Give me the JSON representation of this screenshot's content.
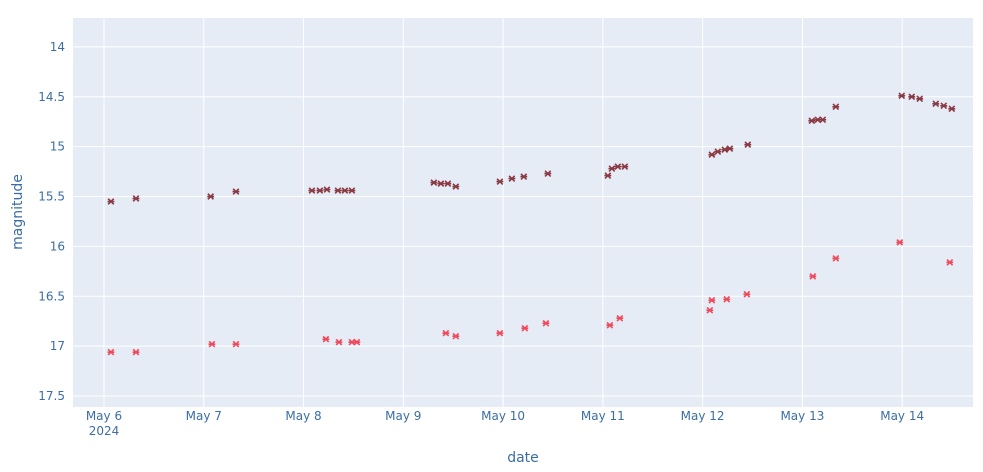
{
  "chart_data": {
    "type": "scatter",
    "x_label": "date",
    "y_label": "magnitude",
    "xlim": [
      "2024-05-05T16:33",
      "2024-05-14T17:02"
    ],
    "ylim": [
      17.61,
      13.71
    ],
    "xticks": [
      {
        "value": "2024-05-06T00:00",
        "label": "May 6"
      },
      {
        "value": "2024-05-07T00:00",
        "label": "May 7"
      },
      {
        "value": "2024-05-08T00:00",
        "label": "May 8"
      },
      {
        "value": "2024-05-09T00:00",
        "label": "May 9"
      },
      {
        "value": "2024-05-10T00:00",
        "label": "May 10"
      },
      {
        "value": "2024-05-11T00:00",
        "label": "May 11"
      },
      {
        "value": "2024-05-12T00:00",
        "label": "May 12"
      },
      {
        "value": "2024-05-13T00:00",
        "label": "May 13"
      },
      {
        "value": "2024-05-14T00:00",
        "label": "May 14"
      }
    ],
    "x_year_label": "2024",
    "yticks": [
      14,
      14.5,
      15,
      15.5,
      16,
      16.5,
      17,
      17.5
    ],
    "grid": true,
    "series": [
      {
        "color": "#8b3a44",
        "x": [
          "2024-05-06T01:41",
          "2024-05-06T07:42",
          "2024-05-07T01:40",
          "2024-05-07T07:45",
          "2024-05-08T02:01",
          "2024-05-08T03:56",
          "2024-05-08T05:38",
          "2024-05-08T08:17",
          "2024-05-08T09:57",
          "2024-05-08T11:38",
          "2024-05-09T07:21",
          "2024-05-09T09:02",
          "2024-05-09T10:43",
          "2024-05-09T12:38",
          "2024-05-09T23:14",
          "2024-05-10T02:07",
          "2024-05-10T04:59",
          "2024-05-10T10:46",
          "2024-05-11T01:12",
          "2024-05-11T02:10",
          "2024-05-11T03:36",
          "2024-05-11T05:17",
          "2024-05-12T02:13",
          "2024-05-12T03:39",
          "2024-05-12T05:20",
          "2024-05-12T06:33",
          "2024-05-12T10:52",
          "2024-05-13T02:15",
          "2024-05-13T03:42",
          "2024-05-13T04:54",
          "2024-05-13T08:02",
          "2024-05-13T23:54",
          "2024-05-14T02:18",
          "2024-05-14T04:13",
          "2024-05-14T08:05",
          "2024-05-14T10:00",
          "2024-05-14T11:56"
        ],
        "values": [
          15.55,
          15.52,
          15.5,
          15.45,
          15.44,
          15.44,
          15.43,
          15.44,
          15.44,
          15.44,
          15.36,
          15.37,
          15.37,
          15.4,
          15.35,
          15.32,
          15.3,
          15.27,
          15.29,
          15.22,
          15.2,
          15.2,
          15.08,
          15.05,
          15.03,
          15.02,
          14.98,
          14.74,
          14.73,
          14.73,
          14.6,
          14.49,
          14.5,
          14.52,
          14.57,
          14.59,
          14.62
        ]
      },
      {
        "color": "#ef4a5b",
        "x": [
          "2024-05-06T01:41",
          "2024-05-06T07:42",
          "2024-05-07T01:58",
          "2024-05-07T07:45",
          "2024-05-08T05:23",
          "2024-05-08T08:31",
          "2024-05-08T11:38",
          "2024-05-08T12:50",
          "2024-05-09T10:14",
          "2024-05-09T12:38",
          "2024-05-09T23:14",
          "2024-05-10T05:14",
          "2024-05-10T10:18",
          "2024-05-11T01:41",
          "2024-05-11T04:05",
          "2024-05-12T01:44",
          "2024-05-12T02:13",
          "2024-05-12T05:48",
          "2024-05-12T10:38",
          "2024-05-13T02:30",
          "2024-05-13T08:02",
          "2024-05-13T23:25",
          "2024-05-14T11:27"
        ],
        "values": [
          17.06,
          17.06,
          16.98,
          16.98,
          16.93,
          16.96,
          16.96,
          16.96,
          16.87,
          16.9,
          16.87,
          16.82,
          16.77,
          16.79,
          16.72,
          16.64,
          16.54,
          16.53,
          16.48,
          16.3,
          16.12,
          15.96,
          16.16
        ]
      }
    ]
  }
}
